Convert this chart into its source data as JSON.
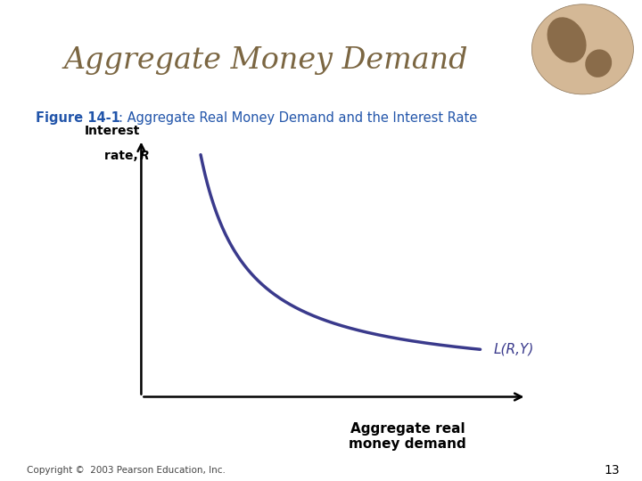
{
  "title": "Aggregate Money Demand",
  "subtitle_bold": "Figure 14-1",
  "subtitle_rest": ": Aggregate Real Money Demand and the Interest Rate",
  "ylabel_line1": "Interest",
  "ylabel_line2": "rate, ",
  "ylabel_R": "R",
  "xlabel_line1": "Aggregate real",
  "xlabel_line2": "money demand",
  "curve_label": "L(R,Y)",
  "curve_color": "#3a3a8c",
  "curve_linewidth": 2.5,
  "title_color": "#7B6642",
  "subtitle_color": "#2255aa",
  "axis_color": "#000000",
  "background_color": "#ffffff",
  "header_bar_color": "#D4A017",
  "copyright_text": "Copyright ©  2003 Pearson Education, Inc.",
  "page_number": "13",
  "figsize": [
    7.2,
    5.4
  ],
  "dpi": 100
}
